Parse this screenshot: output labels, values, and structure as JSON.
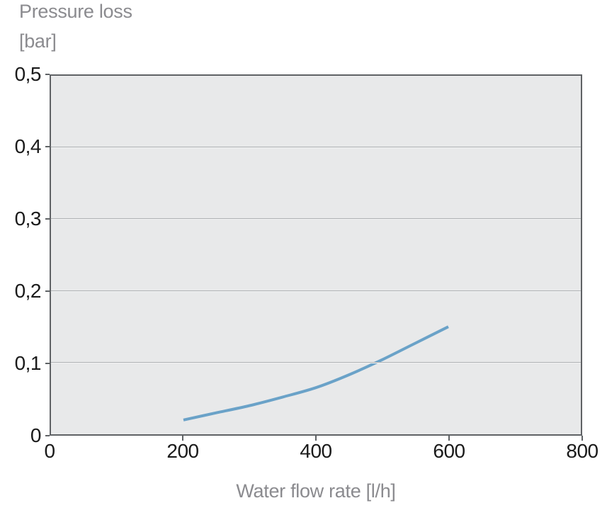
{
  "chart": {
    "title_line1": "Pressure loss",
    "title_line2": "[bar]",
    "x_axis_title": "Water flow rate [l/h]",
    "colors": {
      "plot_bg": "#e8e9ea",
      "plot_border": "#5f6265",
      "gridline": "#aeb1b4",
      "curve": "#6aa2c8",
      "tick_label": "#1a1a1a",
      "axis_title": "#8b8b8f"
    }
  },
  "chart_data": {
    "type": "line",
    "title": "Pressure loss [bar]",
    "xlabel": "Water flow rate [l/h]",
    "ylabel": "Pressure loss [bar]",
    "xlim": [
      0,
      800
    ],
    "ylim": [
      0,
      0.5
    ],
    "x_ticks": [
      0,
      200,
      400,
      600,
      800
    ],
    "x_tick_labels": [
      "0",
      "200",
      "400",
      "600",
      "800"
    ],
    "y_ticks": [
      0,
      0.1,
      0.2,
      0.3,
      0.4,
      0.5
    ],
    "y_tick_labels": [
      "0",
      "0,1",
      "0,2",
      "0,3",
      "0,4",
      "0,5"
    ],
    "grid": "horizontal",
    "legend": "none",
    "series": [
      {
        "name": "Pressure loss",
        "x": [
          200,
          250,
          300,
          350,
          400,
          450,
          500,
          550,
          600
        ],
        "y": [
          0.02,
          0.03,
          0.04,
          0.052,
          0.065,
          0.083,
          0.104,
          0.127,
          0.15
        ]
      }
    ]
  }
}
